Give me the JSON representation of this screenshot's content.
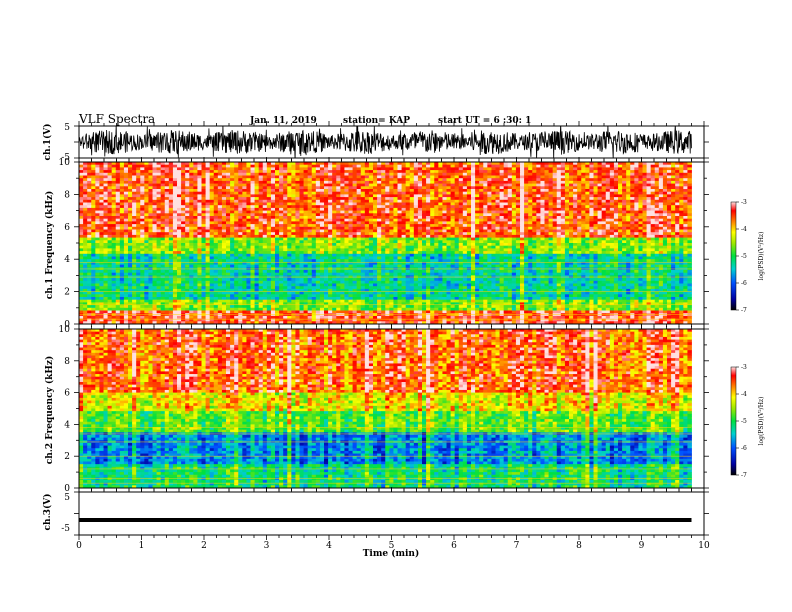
{
  "header": {
    "title": "VLF Spectra",
    "date": "Jan. 11, 2019",
    "station": "station= KAP",
    "start": "start UT = 6 :30: 1"
  },
  "chart_data": [
    {
      "type": "line",
      "panel": "ch1-waveform",
      "ylabel": "ch.1(V)",
      "ylim": [
        -5,
        5
      ],
      "ytick_labels": [
        "5",
        "-5"
      ],
      "xlim": [
        0,
        9.8
      ],
      "description_values": {
        "mean": 0,
        "amplitude_range": [
          -5,
          5
        ]
      }
    },
    {
      "type": "heatmap",
      "panel": "ch1-spectrogram",
      "ylabel": "ch.1 Frequency (kHz)",
      "ylim": [
        0,
        10
      ],
      "ytick_labels": [
        "0",
        "2",
        "4",
        "6",
        "8",
        "10"
      ],
      "xlim": [
        0,
        9.8
      ],
      "colorbar": {
        "label": "log(PSD)(V²/Hz)",
        "range": [
          -7,
          -3
        ],
        "tick_labels": [
          "-3",
          "-4",
          "-5",
          "-6",
          "-7"
        ]
      },
      "bands_kHz": [
        {
          "from": 0.0,
          "to": 0.9,
          "level": -3.4
        },
        {
          "from": 0.9,
          "to": 1.5,
          "level": -4.6
        },
        {
          "from": 1.5,
          "to": 4.3,
          "level": -5.3
        },
        {
          "from": 4.3,
          "to": 5.3,
          "level": -4.6
        },
        {
          "from": 5.3,
          "to": 10.0,
          "level": -3.5
        }
      ]
    },
    {
      "type": "heatmap",
      "panel": "ch2-spectrogram",
      "ylabel": "ch.2 Frequency (kHz)",
      "ylim": [
        0,
        10
      ],
      "ytick_labels": [
        "0",
        "2",
        "4",
        "6",
        "8",
        "10"
      ],
      "xlim": [
        0,
        9.8
      ],
      "colorbar": {
        "label": "log(PSD)(V²/Hz)",
        "range": [
          -7,
          -3
        ],
        "tick_labels": [
          "-3",
          "-4",
          "-5",
          "-6",
          "-7"
        ]
      },
      "bands_kHz": [
        {
          "from": 0.0,
          "to": 1.5,
          "level": -5.2
        },
        {
          "from": 1.5,
          "to": 3.5,
          "level": -5.8
        },
        {
          "from": 3.5,
          "to": 4.8,
          "level": -4.8
        },
        {
          "from": 4.8,
          "to": 6.0,
          "level": -4.2
        },
        {
          "from": 6.0,
          "to": 10.0,
          "level": -3.6
        }
      ]
    },
    {
      "type": "line",
      "panel": "ch3-waveform",
      "ylabel": "ch.3(V)",
      "ylim": [
        -5,
        5
      ],
      "ytick_labels": [
        "5",
        "-5"
      ],
      "xlim": [
        0,
        9.8
      ],
      "values_constant": -1.5
    }
  ],
  "xaxis": {
    "label": "Time (min)",
    "range": [
      0,
      10
    ],
    "tick_labels": [
      "0",
      "1",
      "2",
      "3",
      "4",
      "5",
      "6",
      "7",
      "8",
      "9",
      "10"
    ]
  }
}
